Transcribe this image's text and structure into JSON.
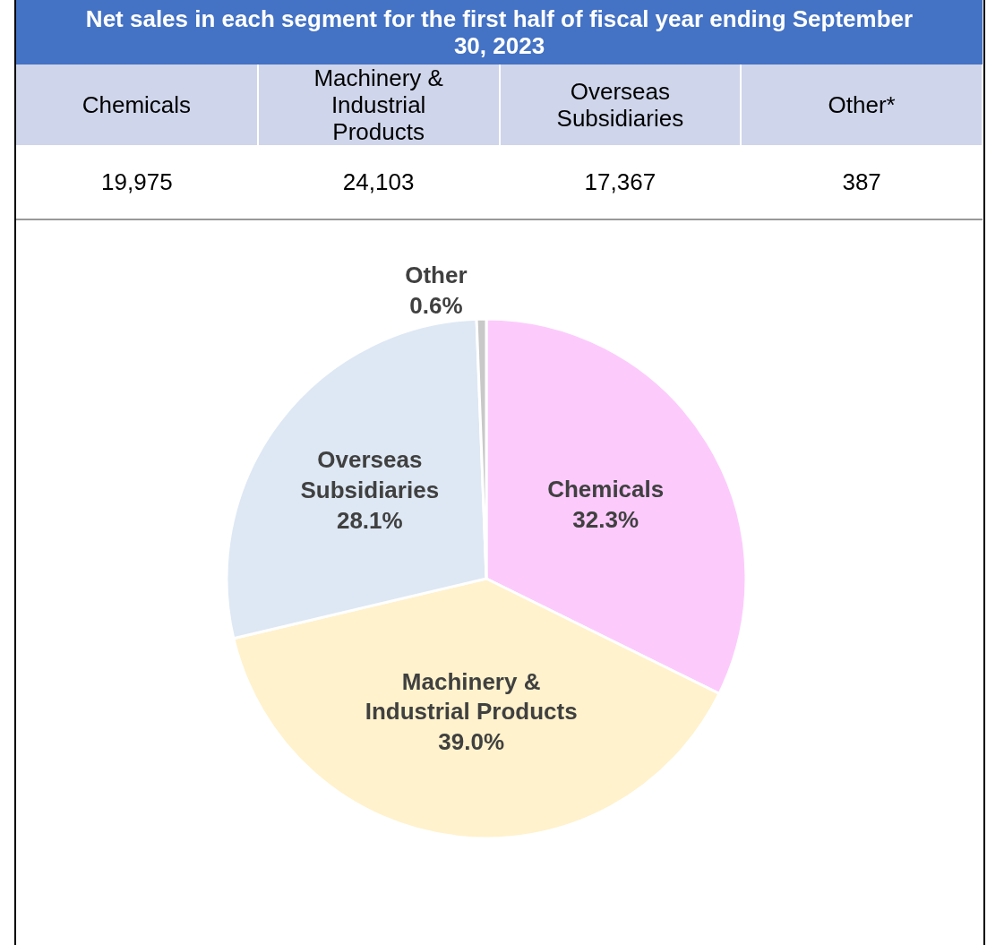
{
  "chart_data": [
    {
      "type": "other",
      "title": "Net sales in each segment for the first half of fiscal year ending September 30, 2023",
      "categories": [
        "Chemicals",
        "Machinery & Industrial Products",
        "Overseas Subsidiaries",
        "Other*"
      ],
      "values": [
        19975,
        24103,
        17367,
        387
      ],
      "value_labels": [
        "19,975",
        "24,103",
        "17,367",
        "387"
      ]
    },
    {
      "type": "pie",
      "categories": [
        "Chemicals",
        "Machinery & Industrial Products",
        "Overseas Subsidiaries",
        "Other"
      ],
      "values": [
        32.3,
        39.0,
        28.1,
        0.6
      ],
      "value_labels": [
        "32.3%",
        "39.0%",
        "28.1%",
        "0.6%"
      ],
      "colors": [
        "#fccbfc",
        "#fff2cc",
        "#dee8f4",
        "#c8c8c8"
      ]
    }
  ]
}
